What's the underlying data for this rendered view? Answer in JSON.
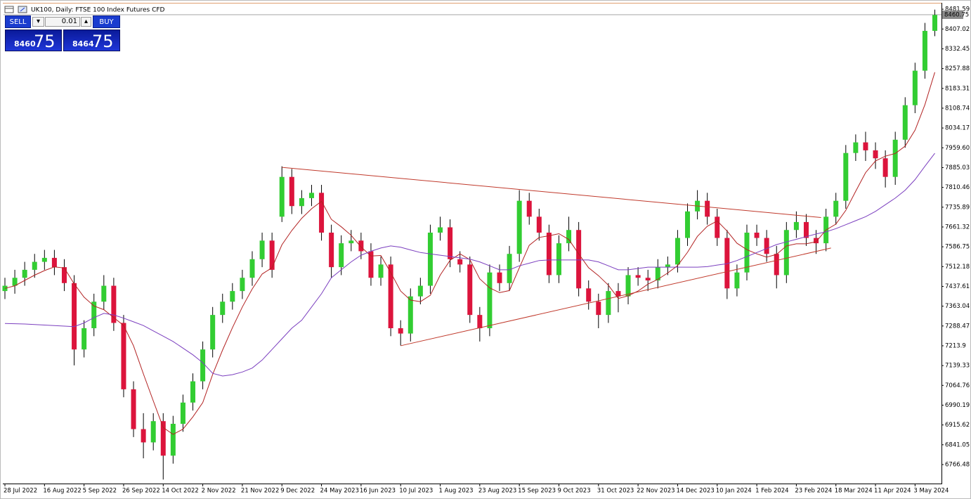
{
  "header": {
    "title": "UK100, Daily:  FTSE 100 Index Futures CFD"
  },
  "trade_panel": {
    "sell": "SELL",
    "buy": "BUY",
    "volume": "0.01",
    "sell_main": "8460",
    "sell_pips": "75",
    "buy_main": "8464",
    "buy_pips": "75"
  },
  "chart_data": {
    "type": "candlestick",
    "up_color": "#32cd32",
    "down_color": "#dc143c",
    "wick_color": "#000000",
    "open": [
      7420,
      7440,
      7470,
      7500,
      7530,
      7545,
      7510,
      7450,
      7200,
      7280,
      7380,
      7440,
      7300,
      7050,
      6900,
      6850,
      6930,
      6800,
      6920,
      7000,
      7080,
      7200,
      7330,
      7380,
      7420,
      7470,
      7540,
      7610,
      7700,
      7850,
      7740,
      7770,
      7790,
      7640,
      7510,
      7600,
      7610,
      7570,
      7470,
      7520,
      7280,
      7260,
      7400,
      7440,
      7640,
      7660,
      7540,
      7520,
      7330,
      7280,
      7490,
      7450,
      7560,
      7760,
      7700,
      7640,
      7480,
      7600,
      7650,
      7430,
      7380,
      7330,
      7420,
      7400,
      7480,
      7470,
      7460,
      7510,
      7520,
      7620,
      7720,
      7760,
      7700,
      7620,
      7430,
      7490,
      7640,
      7620,
      7560,
      7480,
      7650,
      7680,
      7620,
      7600,
      7700,
      7760,
      7940,
      7980,
      7950,
      7920,
      7850,
      7990,
      8120,
      8250,
      8400
    ],
    "high": [
      7470,
      7500,
      7530,
      7560,
      7575,
      7575,
      7540,
      7480,
      7310,
      7410,
      7480,
      7470,
      7330,
      7080,
      6960,
      6960,
      6960,
      6950,
      7030,
      7110,
      7230,
      7360,
      7410,
      7450,
      7500,
      7570,
      7640,
      7640,
      7890,
      7880,
      7800,
      7820,
      7820,
      7670,
      7630,
      7650,
      7640,
      7600,
      7550,
      7550,
      7310,
      7430,
      7470,
      7670,
      7700,
      7690,
      7570,
      7550,
      7360,
      7520,
      7520,
      7590,
      7800,
      7790,
      7730,
      7670,
      7630,
      7700,
      7680,
      7460,
      7410,
      7450,
      7450,
      7510,
      7510,
      7500,
      7540,
      7550,
      7650,
      7750,
      7800,
      7790,
      7730,
      7650,
      7520,
      7670,
      7670,
      7650,
      7590,
      7680,
      7720,
      7710,
      7650,
      7730,
      7790,
      7970,
      8010,
      8020,
      7980,
      7950,
      8020,
      8150,
      8280,
      8430,
      8480
    ],
    "low": [
      7390,
      7410,
      7440,
      7470,
      7500,
      7480,
      7420,
      7140,
      7170,
      7250,
      7350,
      7270,
      7020,
      6870,
      6790,
      6820,
      6710,
      6770,
      6890,
      6970,
      7050,
      7170,
      7300,
      7350,
      7390,
      7440,
      7510,
      7470,
      7680,
      7710,
      7710,
      7740,
      7610,
      7470,
      7480,
      7570,
      7540,
      7440,
      7440,
      7250,
      7215,
      7230,
      7370,
      7410,
      7610,
      7510,
      7490,
      7300,
      7230,
      7250,
      7420,
      7420,
      7530,
      7670,
      7610,
      7450,
      7450,
      7570,
      7400,
      7350,
      7280,
      7300,
      7340,
      7370,
      7440,
      7420,
      7430,
      7480,
      7490,
      7590,
      7690,
      7670,
      7590,
      7390,
      7400,
      7460,
      7590,
      7530,
      7430,
      7450,
      7620,
      7590,
      7560,
      7570,
      7670,
      7730,
      7910,
      7910,
      7880,
      7810,
      7820,
      7960,
      8090,
      8220,
      8380
    ],
    "close": [
      7440,
      7470,
      7500,
      7530,
      7545,
      7510,
      7450,
      7200,
      7280,
      7380,
      7440,
      7300,
      7050,
      6900,
      6850,
      6930,
      6800,
      6920,
      7000,
      7080,
      7200,
      7330,
      7380,
      7420,
      7470,
      7540,
      7610,
      7500,
      7850,
      7740,
      7770,
      7790,
      7640,
      7510,
      7600,
      7610,
      7570,
      7470,
      7520,
      7280,
      7260,
      7400,
      7440,
      7640,
      7660,
      7540,
      7520,
      7330,
      7280,
      7490,
      7450,
      7560,
      7760,
      7700,
      7640,
      7480,
      7600,
      7650,
      7430,
      7380,
      7330,
      7420,
      7400,
      7480,
      7470,
      7460,
      7510,
      7520,
      7620,
      7720,
      7760,
      7700,
      7620,
      7430,
      7490,
      7640,
      7620,
      7560,
      7480,
      7650,
      7680,
      7620,
      7600,
      7700,
      7760,
      7940,
      7980,
      7950,
      7920,
      7850,
      7990,
      8120,
      8250,
      8400,
      8460
    ],
    "ma": [
      {
        "color": "#b22222",
        "values": [
          7430,
          7440,
          7460,
          7480,
          7497,
          7511,
          7507,
          7447,
          7397,
          7364,
          7350,
          7320,
          7290,
          7214,
          7108,
          7006,
          6906,
          6880,
          6900,
          6946,
          7000,
          7106,
          7198,
          7282,
          7360,
          7428,
          7484,
          7508,
          7594,
          7648,
          7694,
          7730,
          7758,
          7690,
          7662,
          7630,
          7586,
          7552,
          7554,
          7490,
          7420,
          7386,
          7380,
          7404,
          7480,
          7536,
          7560,
          7538,
          7466,
          7432,
          7414,
          7422,
          7508,
          7592,
          7622,
          7628,
          7636,
          7614,
          7560,
          7508,
          7478,
          7442,
          7392,
          7402,
          7420,
          7446,
          7464,
          7488,
          7516,
          7566,
          7626,
          7664,
          7684,
          7646,
          7600,
          7576,
          7560,
          7548,
          7558,
          7590,
          7598,
          7598,
          7606,
          7650,
          7672,
          7724,
          7796,
          7866,
          7910,
          7928,
          7938,
          7966,
          8026,
          8122,
          8244
        ]
      },
      {
        "color": "#7b3fbf",
        "values": [
          7298,
          7297,
          7296,
          7294,
          7292,
          7290,
          7288,
          7286,
          7300,
          7320,
          7336,
          7330,
          7318,
          7304,
          7290,
          7270,
          7250,
          7230,
          7205,
          7180,
          7150,
          7110,
          7100,
          7105,
          7115,
          7130,
          7160,
          7200,
          7240,
          7280,
          7310,
          7360,
          7410,
          7470,
          7500,
          7530,
          7555,
          7570,
          7582,
          7590,
          7585,
          7575,
          7565,
          7560,
          7555,
          7550,
          7545,
          7540,
          7530,
          7515,
          7500,
          7500,
          7515,
          7525,
          7535,
          7537,
          7537,
          7537,
          7537,
          7537,
          7530,
          7515,
          7500,
          7500,
          7505,
          7510,
          7510,
          7510,
          7510,
          7510,
          7510,
          7512,
          7518,
          7523,
          7535,
          7550,
          7565,
          7580,
          7595,
          7605,
          7615,
          7625,
          7635,
          7643,
          7655,
          7670,
          7685,
          7700,
          7720,
          7745,
          7770,
          7800,
          7840,
          7890,
          7939
        ]
      }
    ],
    "trendlines": [
      {
        "color": "#c0392b",
        "x": [
          28,
          82.5
        ],
        "y": [
          7886,
          7697
        ]
      },
      {
        "color": "#c0392b",
        "x": [
          40,
          83.5
        ],
        "y": [
          7214,
          7582
        ]
      }
    ],
    "current_price": 8460.75,
    "ylim": [
      6695,
      8503
    ],
    "yticks": [
      8481.59,
      8407.02,
      8332.45,
      8257.88,
      8183.31,
      8108.74,
      8034.17,
      {
        "value": 7959.6,
        "label": "7959.60"
      },
      7885.03,
      7810.46,
      7735.89,
      7661.32,
      7586.75,
      7512.18,
      7437.61,
      7363.04,
      7288.47,
      7213.9,
      7139.33,
      7064.76,
      6990.19,
      6915.62,
      6841.05,
      6766.48
    ],
    "xticks": [
      {
        "value": 0,
        "label": "28 Jul 2022"
      },
      {
        "value": 4,
        "label": "16 Aug 2022"
      },
      {
        "value": 8,
        "label": "5 Sep 2022"
      },
      {
        "value": 12,
        "label": "26 Sep 2022"
      },
      {
        "value": 16,
        "label": "14 Oct 2022"
      },
      {
        "value": 20,
        "label": "2 Nov 2022"
      },
      {
        "value": 24,
        "label": "21 Nov 2022"
      },
      {
        "value": 28,
        "label": "9 Dec 2022"
      },
      {
        "value": 32,
        "label": "24 May 2023"
      },
      {
        "value": 36,
        "label": "16 Jun 2023"
      },
      {
        "value": 40,
        "label": "10 Jul 2023"
      },
      {
        "value": 44,
        "label": "1 Aug 2023"
      },
      {
        "value": 48,
        "label": "23 Aug 2023"
      },
      {
        "value": 52,
        "label": "15 Sep 2023"
      },
      {
        "value": 56,
        "label": "9 Oct 2023"
      },
      {
        "value": 60,
        "label": "31 Oct 2023"
      },
      {
        "value": 64,
        "label": "22 Nov 2023"
      },
      {
        "value": 68,
        "label": "14 Dec 2023"
      },
      {
        "value": 72,
        "label": "10 Jan 2024"
      },
      {
        "value": 76,
        "label": "1 Feb 2024"
      },
      {
        "value": 80,
        "label": "23 Feb 2024"
      },
      {
        "value": 84,
        "label": "18 Mar 2024"
      },
      {
        "value": 88,
        "label": "11 Apr 2024"
      },
      {
        "value": 92,
        "label": "3 May 2024"
      }
    ]
  }
}
